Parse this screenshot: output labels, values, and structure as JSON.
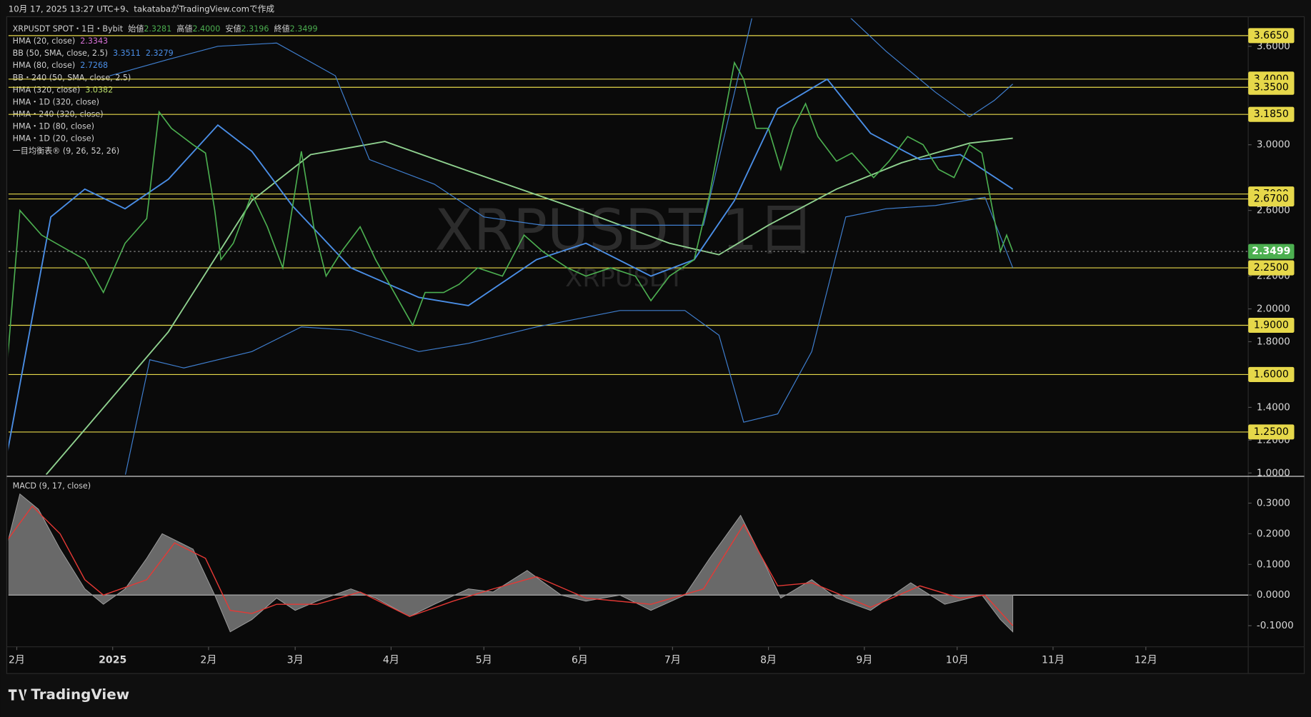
{
  "header": {
    "caption": "10月 17, 2025 13:27 UTC+9、takatabaがTradingView.comで作成"
  },
  "legend": {
    "symbol": "XRPUSDT SPOT・1日・Bybit",
    "ohlc": [
      {
        "label": "始値",
        "value": "2.3281"
      },
      {
        "label": "高値",
        "value": "2.4000"
      },
      {
        "label": "安値",
        "value": "2.3196"
      },
      {
        "label": "終値",
        "value": "2.3499"
      }
    ],
    "indicators": [
      {
        "label": "HMA (20, close)",
        "values": [
          "2.3343"
        ],
        "color": "#d46fd4"
      },
      {
        "label": "BB (50, SMA, close, 2.5)",
        "values": [
          "3.3511",
          "2.3279"
        ],
        "color": "#4a8ee6"
      },
      {
        "label": "HMA (80, close)",
        "values": [
          "2.7268"
        ],
        "color": "#4a8ee6"
      },
      {
        "label": "BB・240 (50, SMA, close, 2.5)",
        "values": []
      },
      {
        "label": "HMA (320, close)",
        "values": [
          "3.0382"
        ],
        "color": "#b5d96a"
      },
      {
        "label": "HMA・1D (320, close)",
        "values": []
      },
      {
        "label": "HMA・240 (320, close)",
        "values": []
      },
      {
        "label": "HMA・1D (80, close)",
        "values": []
      },
      {
        "label": "HMA・1D (20, close)",
        "values": []
      },
      {
        "label": "一目均衡表® (9, 26, 52, 26)",
        "values": []
      }
    ]
  },
  "watermark": {
    "title": "XRPUSDT 1日",
    "subtitle": "XRPUSDT"
  },
  "chart_data": [
    {
      "type": "line",
      "xlim": [
        -2.7,
        398.1
      ],
      "ylim": [
        0.99,
        3.77
      ],
      "xticks": [
        {
          "value": 0,
          "label": "2月"
        },
        {
          "value": 31,
          "label": "2025"
        },
        {
          "value": 62,
          "label": "2月"
        },
        {
          "value": 90,
          "label": "3月"
        },
        {
          "value": 121,
          "label": "4月"
        },
        {
          "value": 151,
          "label": "5月"
        },
        {
          "value": 182,
          "label": "6月"
        },
        {
          "value": 212,
          "label": "7月"
        },
        {
          "value": 243,
          "label": "8月"
        },
        {
          "value": 274,
          "label": "9月"
        },
        {
          "value": 304,
          "label": "10月"
        },
        {
          "value": 335,
          "label": "11月"
        },
        {
          "value": 365,
          "label": "12月"
        }
      ],
      "yticks": [
        {
          "value": 3.6,
          "label": "3.6000"
        },
        {
          "value": 3,
          "label": "3.0000"
        },
        {
          "value": 2.6,
          "label": "2.6000"
        },
        {
          "value": 2.2,
          "label": "2.2000"
        },
        {
          "value": 2,
          "label": "2.0000"
        },
        {
          "value": 1.8,
          "label": "1.8000"
        },
        {
          "value": 1.4,
          "label": "1.4000"
        },
        {
          "value": 1.2,
          "label": "1.2000"
        },
        {
          "value": 1,
          "label": "1.0000"
        }
      ],
      "levels": [
        {
          "value": 3.665,
          "label": "3.6650"
        },
        {
          "value": 3.4,
          "label": "3.4000"
        },
        {
          "value": 3.35,
          "label": "3.3500"
        },
        {
          "value": 3.185,
          "label": "3.1850"
        },
        {
          "value": 2.7,
          "label": "2.7000"
        },
        {
          "value": 2.67,
          "label": "2.6700"
        },
        {
          "value": 2.25,
          "label": "2.2500"
        },
        {
          "value": 1.9,
          "label": "1.9000"
        },
        {
          "value": 1.6,
          "label": "1.6000"
        },
        {
          "value": 1.25,
          "label": "1.2500"
        }
      ],
      "level_color": "#e6d84a",
      "last": {
        "value": 2.3499,
        "label": "2.3499",
        "color": "#4caf50"
      },
      "series": [
        {
          "color": "#8fd18f",
          "width": 1.6,
          "x": [
            9.5,
            49,
            76,
            95,
            119,
            146,
            178,
            211,
            227,
            243,
            265,
            286,
            308,
            322
          ],
          "values": [
            0.99,
            1.86,
            2.66,
            2.94,
            3.02,
            2.84,
            2.63,
            2.4,
            2.33,
            2.51,
            2.73,
            2.89,
            3.01,
            3.04
          ]
        },
        {
          "color": "#3f7fd0",
          "width": 1,
          "x": [
            30,
            49,
            65,
            84,
            103,
            114,
            135,
            151,
            170,
            200,
            222,
            238,
            268,
            281,
            297,
            308,
            316,
            322
          ],
          "values": [
            3.42,
            3.52,
            3.6,
            3.62,
            3.42,
            2.91,
            2.76,
            2.56,
            2.51,
            2.51,
            2.51,
            3.8,
            3.8,
            3.57,
            3.32,
            3.17,
            3.27,
            3.37
          ]
        },
        {
          "color": "#3f7fd0",
          "width": 1,
          "x": [
            35,
            43,
            54,
            76,
            92,
            108,
            130,
            146,
            168,
            195,
            216,
            227,
            235,
            246,
            257,
            268,
            281,
            297,
            313,
            322
          ],
          "values": [
            0.98,
            1.69,
            1.64,
            1.74,
            1.89,
            1.87,
            1.74,
            1.79,
            1.89,
            1.99,
            1.99,
            1.84,
            1.31,
            1.36,
            1.74,
            2.56,
            2.61,
            2.63,
            2.68,
            2.25
          ]
        },
        {
          "color": "#4a8ee6",
          "width": 1.6,
          "x": [
            -3,
            11,
            22,
            35,
            49,
            65,
            76,
            89,
            108,
            130,
            146,
            168,
            184,
            205,
            219,
            232,
            246,
            262,
            276,
            292,
            305,
            322
          ],
          "values": [
            1.13,
            2.56,
            2.73,
            2.61,
            2.79,
            3.12,
            2.96,
            2.63,
            2.25,
            2.07,
            2.02,
            2.3,
            2.4,
            2.2,
            2.3,
            2.66,
            3.22,
            3.4,
            3.07,
            2.91,
            2.94,
            2.73
          ]
        },
        {
          "color": "#4caf50",
          "width": 1.4,
          "x": [
            -3,
            1,
            8,
            22,
            28,
            35,
            42,
            46,
            50,
            57,
            61,
            64,
            66,
            70,
            76,
            81,
            86,
            92,
            96,
            100,
            105,
            111,
            116,
            122,
            128,
            132,
            138,
            143,
            149,
            157,
            164,
            170,
            178,
            184,
            192,
            200,
            205,
            211,
            219,
            224,
            228,
            232,
            235,
            239,
            243,
            247,
            251,
            255,
            259,
            265,
            270,
            277,
            282,
            288,
            293,
            298,
            303,
            308,
            312,
            315,
            318,
            320,
            322
          ],
          "values": [
            1.69,
            2.6,
            2.45,
            2.3,
            2.1,
            2.4,
            2.55,
            3.2,
            3.1,
            3.0,
            2.95,
            2.6,
            2.3,
            2.4,
            2.7,
            2.5,
            2.25,
            2.96,
            2.5,
            2.2,
            2.35,
            2.5,
            2.3,
            2.1,
            1.9,
            2.1,
            2.1,
            2.15,
            2.25,
            2.2,
            2.45,
            2.35,
            2.25,
            2.2,
            2.25,
            2.2,
            2.05,
            2.2,
            2.3,
            2.7,
            3.1,
            3.5,
            3.4,
            3.1,
            3.1,
            2.85,
            3.1,
            3.25,
            3.05,
            2.9,
            2.95,
            2.8,
            2.9,
            3.05,
            3.0,
            2.85,
            2.8,
            3.0,
            2.95,
            2.65,
            2.35,
            2.45,
            2.3499
          ]
        }
      ]
    },
    {
      "type": "line",
      "title": "MACD (9, 17, close)",
      "xlim": [
        -2.7,
        398.1
      ],
      "ylim": [
        -0.158,
        0.382
      ],
      "yticks": [
        {
          "value": 0.3,
          "label": "0.3000"
        },
        {
          "value": 0.2,
          "label": "0.2000"
        },
        {
          "value": 0.1,
          "label": "0.1000"
        },
        {
          "value": 0,
          "label": "0.0000"
        },
        {
          "value": -0.1,
          "label": "-0.1000"
        }
      ],
      "series": [
        {
          "type": "area",
          "color": "#7a7a7a",
          "x": [
            -3,
            1,
            7,
            14,
            22,
            28,
            35,
            42,
            47,
            57,
            64,
            69,
            76,
            84,
            90,
            97,
            108,
            116,
            127,
            135,
            146,
            154,
            165,
            176,
            184,
            195,
            205,
            216,
            224,
            234,
            241,
            247,
            257,
            265,
            276,
            289,
            300,
            312,
            318,
            322
          ],
          "values": [
            0.17,
            0.33,
            0.28,
            0.15,
            0.02,
            -0.03,
            0.02,
            0.12,
            0.2,
            0.15,
            0,
            -0.12,
            -0.08,
            -0.01,
            -0.05,
            -0.02,
            0.02,
            -0.01,
            -0.07,
            -0.03,
            0.02,
            0.01,
            0.08,
            0,
            -0.02,
            0,
            -0.05,
            0,
            0.12,
            0.26,
            0.12,
            -0.01,
            0.05,
            -0.01,
            -0.05,
            0.04,
            -0.03,
            0,
            -0.08,
            -0.12
          ]
        },
        {
          "type": "line",
          "color": "#e53935",
          "x": [
            -3,
            5,
            14,
            22,
            28,
            42,
            51,
            61,
            69,
            76,
            84,
            97,
            111,
            127,
            141,
            154,
            168,
            184,
            205,
            222,
            235,
            246,
            257,
            276,
            292,
            305,
            313,
            322
          ],
          "values": [
            0.18,
            0.29,
            0.2,
            0.05,
            0,
            0.05,
            0.17,
            0.12,
            -0.05,
            -0.06,
            -0.03,
            -0.03,
            0.01,
            -0.07,
            -0.02,
            0.02,
            0.06,
            -0.01,
            -0.03,
            0.02,
            0.23,
            0.03,
            0.04,
            -0.04,
            0.03,
            -0.01,
            0,
            -0.1
          ]
        }
      ]
    }
  ],
  "footer": {
    "logo": "TradingView"
  }
}
